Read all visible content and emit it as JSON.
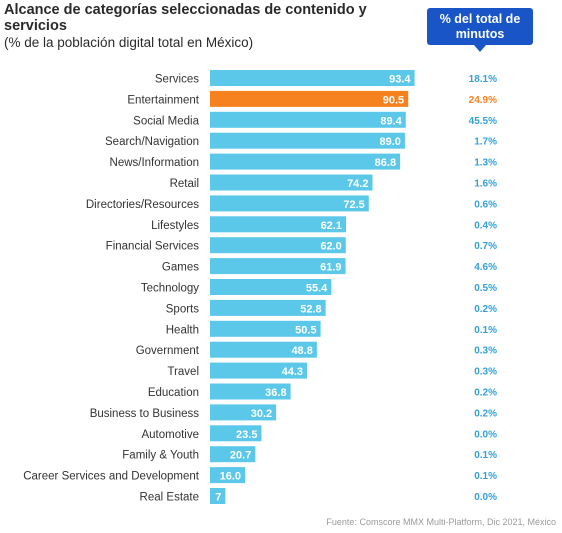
{
  "title": "Alcance de categorías seleccionadas de contenido y servicios",
  "subtitle": "(% de la población digital total en México)",
  "badge_label": "% del total de minutos",
  "source": "Fuente: Comscore MMX Multi-Platform, Dic 2021, México",
  "colors": {
    "bar": "#5bc8ea",
    "highlight_bar": "#f6821f",
    "share_text": "#33a0d8",
    "highlight_share_text": "#f6821f",
    "badge": "#1a55c8"
  },
  "chart_data": {
    "type": "bar",
    "orientation": "horizontal",
    "categories": [
      "Services",
      "Entertainment",
      "Social Media",
      "Search/Navigation",
      "News/Information",
      "Retail",
      "Directories/Resources",
      "Lifestyles",
      "Financial Services",
      "Games",
      "Technology",
      "Sports",
      "Health",
      "Government",
      "Travel",
      "Education",
      "Business to Business",
      "Automotive",
      "Family & Youth",
      "Career Services and Development",
      "Real Estate"
    ],
    "value_labels": [
      "93.4",
      "90.5",
      "89.4",
      "89.0",
      "86.8",
      "74.2",
      "72.5",
      "62.1",
      "62.0",
      "61.9",
      "55.4",
      "52.8",
      "50.5",
      "48.8",
      "44.3",
      "36.8",
      "30.2",
      "23.5",
      "20.7",
      "16.0",
      "7"
    ],
    "values": [
      93.4,
      90.5,
      89.4,
      89.0,
      86.8,
      74.2,
      72.5,
      62.1,
      62.0,
      61.9,
      55.4,
      52.8,
      50.5,
      48.8,
      44.3,
      36.8,
      30.2,
      23.5,
      20.7,
      16.0,
      7
    ],
    "share_labels": [
      "18.1%",
      "24.9%",
      "45.5%",
      "1.7%",
      "1.3%",
      "1.6%",
      "0.6%",
      "0.4%",
      "0.7%",
      "4.6%",
      "0.5%",
      "0.2%",
      "0.1%",
      "0.3%",
      "0.3%",
      "0.2%",
      "0.2%",
      "0.0%",
      "0.1%",
      "0.1%",
      "0.0%"
    ],
    "highlight_category": "Entertainment",
    "xlim": [
      0,
      100
    ],
    "grid": false,
    "legend": "none"
  }
}
